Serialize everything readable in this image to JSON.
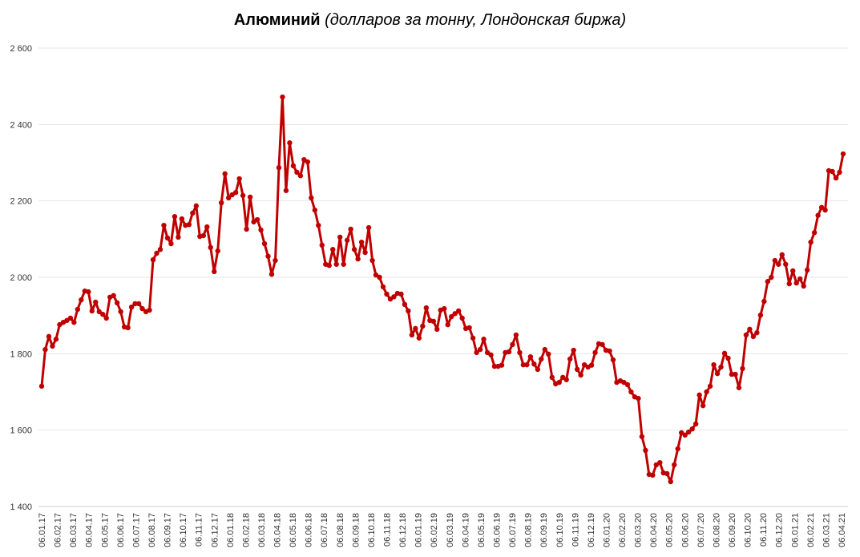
{
  "chart_data": {
    "type": "line",
    "title": "Алюминий",
    "subtitle": "(долларов за тонну, Лондонская биржа)",
    "xlabel": "",
    "ylabel": "",
    "ylim": [
      1400,
      2600
    ],
    "yticks": [
      1400,
      1600,
      1800,
      2000,
      2200,
      2400,
      2600
    ],
    "ytick_labels": [
      "1 400",
      "1 600",
      "1 800",
      "2 000",
      "2 200",
      "2 400",
      "2 600"
    ],
    "grid": true,
    "legend": "none",
    "line_color": "#C00000",
    "x_tick_labels": [
      "06.01.17",
      "06.02.17",
      "06.03.17",
      "06.04.17",
      "06.05.17",
      "06.06.17",
      "06.07.17",
      "06.08.17",
      "06.09.17",
      "06.10.17",
      "06.11.17",
      "06.12.17",
      "06.01.18",
      "06.02.18",
      "06.03.18",
      "06.04.18",
      "06.05.18",
      "06.06.18",
      "06.07.18",
      "06.08.18",
      "06.09.18",
      "06.10.18",
      "06.11.18",
      "06.12.18",
      "06.01.19",
      "06.02.19",
      "06.03.19",
      "06.04.19",
      "06.05.19",
      "06.06.19",
      "06.07.19",
      "06.08.19",
      "06.09.19",
      "06.10.19",
      "06.11.19",
      "06.12.19",
      "06.01.20",
      "06.02.20",
      "06.03.20",
      "06.04.20",
      "06.05.20",
      "06.06.20",
      "06.07.20",
      "06.08.20",
      "06.09.20",
      "06.10.20",
      "06.11.20",
      "06.12.20",
      "06.01.21",
      "06.02.21",
      "06.03.21",
      "06.04.21"
    ],
    "values": [
      1715,
      1811,
      1845,
      1820,
      1838,
      1876,
      1882,
      1887,
      1893,
      1882,
      1916,
      1941,
      1964,
      1962,
      1912,
      1935,
      1910,
      1903,
      1893,
      1948,
      1952,
      1933,
      1910,
      1870,
      1868,
      1922,
      1931,
      1931,
      1918,
      1910,
      1914,
      2046,
      2063,
      2073,
      2136,
      2103,
      2088,
      2159,
      2105,
      2153,
      2136,
      2138,
      2168,
      2187,
      2107,
      2109,
      2132,
      2078,
      2015,
      2069,
      2195,
      2271,
      2208,
      2216,
      2222,
      2258,
      2214,
      2126,
      2210,
      2145,
      2151,
      2124,
      2088,
      2055,
      2008,
      2044,
      2287,
      2472,
      2227,
      2352,
      2292,
      2275,
      2266,
      2308,
      2302,
      2208,
      2176,
      2136,
      2084,
      2034,
      2031,
      2073,
      2034,
      2105,
      2034,
      2097,
      2126,
      2073,
      2048,
      2092,
      2065,
      2130,
      2044,
      2006,
      2000,
      1975,
      1956,
      1943,
      1949,
      1958,
      1956,
      1929,
      1912,
      1849,
      1866,
      1841,
      1872,
      1920,
      1887,
      1885,
      1864,
      1914,
      1918,
      1876,
      1897,
      1905,
      1912,
      1893,
      1866,
      1868,
      1841,
      1803,
      1811,
      1838,
      1803,
      1797,
      1767,
      1767,
      1770,
      1803,
      1805,
      1824,
      1849,
      1803,
      1771,
      1771,
      1792,
      1773,
      1759,
      1786,
      1811,
      1799,
      1738,
      1721,
      1725,
      1738,
      1732,
      1786,
      1809,
      1759,
      1744,
      1771,
      1765,
      1770,
      1803,
      1826,
      1824,
      1809,
      1807,
      1784,
      1725,
      1729,
      1725,
      1719,
      1700,
      1687,
      1683,
      1583,
      1547,
      1484,
      1482,
      1509,
      1515,
      1488,
      1486,
      1465,
      1509,
      1551,
      1593,
      1587,
      1595,
      1603,
      1616,
      1692,
      1664,
      1700,
      1715,
      1771,
      1748,
      1765,
      1801,
      1788,
      1746,
      1746,
      1711,
      1761,
      1849,
      1864,
      1845,
      1855,
      1901,
      1937,
      1989,
      2000,
      2044,
      2034,
      2059,
      2034,
      1983,
      2017,
      1985,
      1996,
      1977,
      2019,
      2092,
      2117,
      2162,
      2183,
      2176,
      2279,
      2277,
      2260,
      2275,
      2323
    ]
  }
}
